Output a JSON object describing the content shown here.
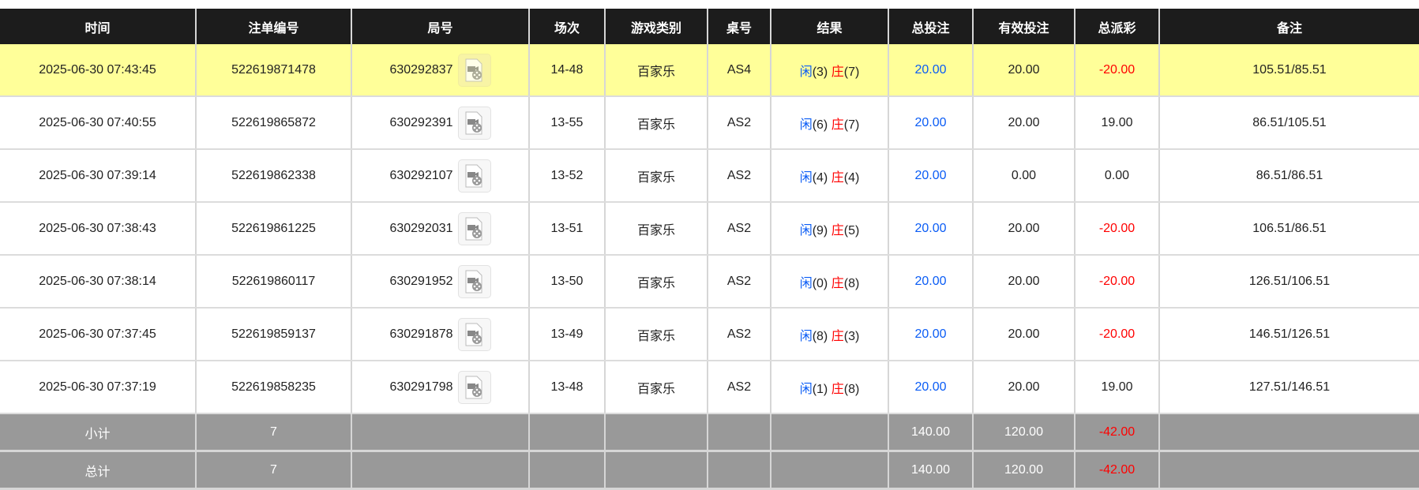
{
  "headers": [
    "时间",
    "注单编号",
    "局号",
    "场次",
    "游戏类别",
    "桌号",
    "结果",
    "总投注",
    "有效投注",
    "总派彩",
    "备注"
  ],
  "rows": [
    {
      "time": "2025-06-30 07:43:45",
      "bet_id": "522619871478",
      "round": "630292837",
      "shoe": "14-48",
      "game": "百家乐",
      "table": "AS4",
      "player_label": "闲",
      "player": "(3)",
      "banker_label": "庄",
      "banker": "(7)",
      "total": "20.00",
      "valid": "20.00",
      "payout": "-20.00",
      "note": "105.51/85.51",
      "highlight": true
    },
    {
      "time": "2025-06-30 07:40:55",
      "bet_id": "522619865872",
      "round": "630292391",
      "shoe": "13-55",
      "game": "百家乐",
      "table": "AS2",
      "player_label": "闲",
      "player": "(6)",
      "banker_label": "庄",
      "banker": "(7)",
      "total": "20.00",
      "valid": "20.00",
      "payout": "19.00",
      "note": "86.51/105.51"
    },
    {
      "time": "2025-06-30 07:39:14",
      "bet_id": "522619862338",
      "round": "630292107",
      "shoe": "13-52",
      "game": "百家乐",
      "table": "AS2",
      "player_label": "闲",
      "player": "(4)",
      "banker_label": "庄",
      "banker": "(4)",
      "total": "20.00",
      "valid": "0.00",
      "payout": "0.00",
      "note": "86.51/86.51"
    },
    {
      "time": "2025-06-30 07:38:43",
      "bet_id": "522619861225",
      "round": "630292031",
      "shoe": "13-51",
      "game": "百家乐",
      "table": "AS2",
      "player_label": "闲",
      "player": "(9)",
      "banker_label": "庄",
      "banker": "(5)",
      "total": "20.00",
      "valid": "20.00",
      "payout": "-20.00",
      "note": "106.51/86.51"
    },
    {
      "time": "2025-06-30 07:38:14",
      "bet_id": "522619860117",
      "round": "630291952",
      "shoe": "13-50",
      "game": "百家乐",
      "table": "AS2",
      "player_label": "闲",
      "player": "(0)",
      "banker_label": "庄",
      "banker": "(8)",
      "total": "20.00",
      "valid": "20.00",
      "payout": "-20.00",
      "note": "126.51/106.51"
    },
    {
      "time": "2025-06-30 07:37:45",
      "bet_id": "522619859137",
      "round": "630291878",
      "shoe": "13-49",
      "game": "百家乐",
      "table": "AS2",
      "player_label": "闲",
      "player": "(8)",
      "banker_label": "庄",
      "banker": "(3)",
      "total": "20.00",
      "valid": "20.00",
      "payout": "-20.00",
      "note": "146.51/126.51"
    },
    {
      "time": "2025-06-30 07:37:19",
      "bet_id": "522619858235",
      "round": "630291798",
      "shoe": "13-48",
      "game": "百家乐",
      "table": "AS2",
      "player_label": "闲",
      "player": "(1)",
      "banker_label": "庄",
      "banker": "(8)",
      "total": "20.00",
      "valid": "20.00",
      "payout": "19.00",
      "note": "127.51/146.51"
    }
  ],
  "subtotal": {
    "label": "小计",
    "count": "7",
    "total": "140.00",
    "valid": "120.00",
    "payout": "-42.00"
  },
  "grandtotal": {
    "label": "总计",
    "count": "7",
    "total": "140.00",
    "valid": "120.00",
    "payout": "-42.00"
  },
  "colors": {
    "header_bg": "#1c1c1c",
    "highlight": "#ffff99",
    "blue": "#0a5cf5",
    "red": "#ff0000",
    "footer_bg": "#999999"
  },
  "icons": {
    "round_video": "video-file-icon"
  }
}
